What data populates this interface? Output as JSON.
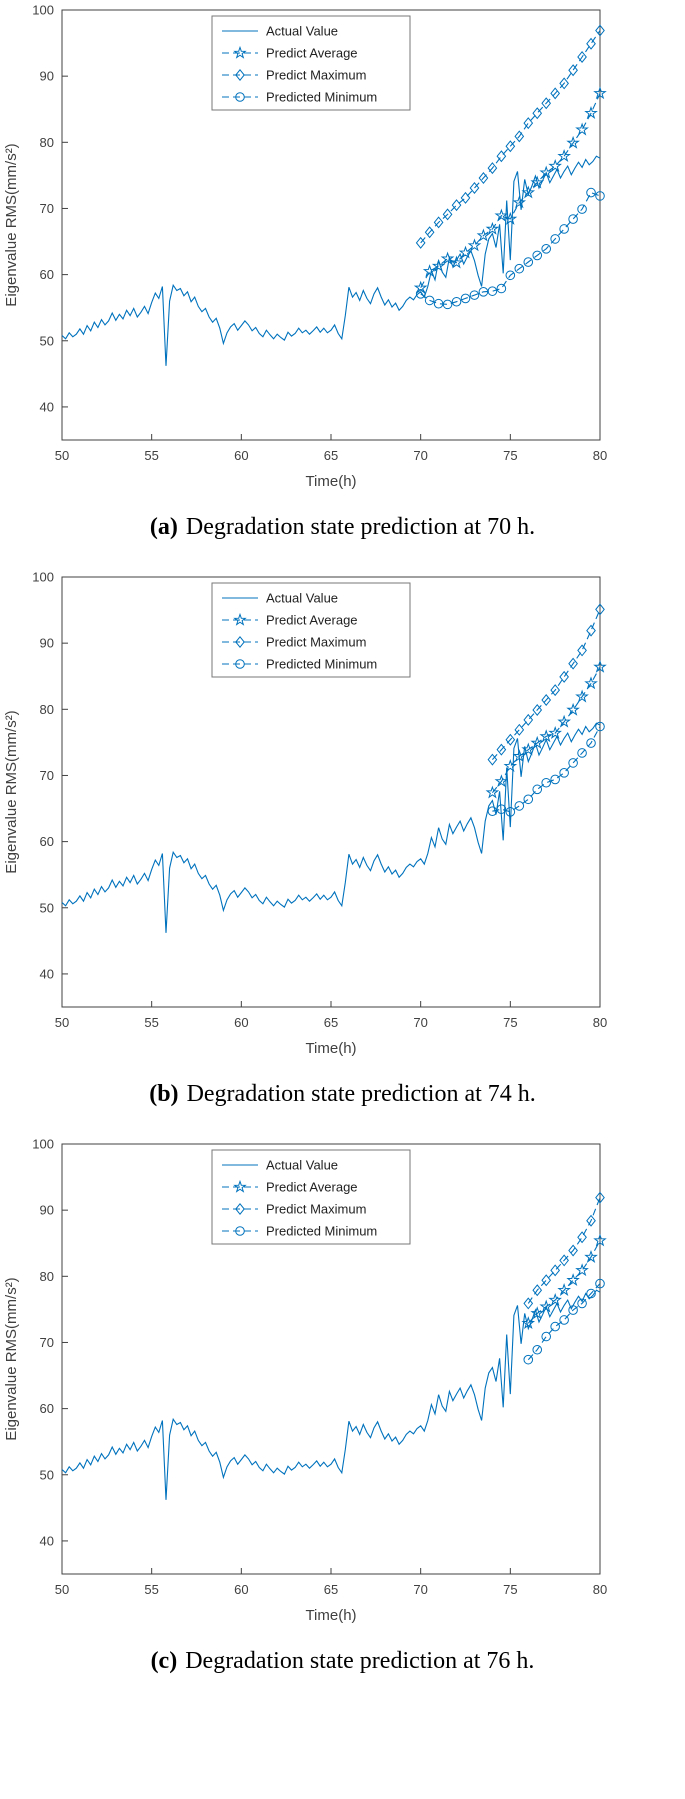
{
  "figures": [
    {
      "id": "a",
      "caption": {
        "label": "(a)",
        "text": "Degradation state prediction at 70 h."
      }
    },
    {
      "id": "b",
      "caption": {
        "label": "(b)",
        "text": "Degradation state prediction at 74 h."
      }
    },
    {
      "id": "c",
      "caption": {
        "label": "(c)",
        "text": "Degradation state prediction at 76 h."
      }
    }
  ],
  "colors": {
    "series": "#0072BD",
    "axis": "#404040",
    "legend_border": "#777777",
    "background": "#ffffff"
  },
  "legend_labels": [
    "Actual Value",
    "Predict Average",
    "Predict Maximum",
    "Predicted Minimum"
  ],
  "chart_data": {
    "shared_actual": {
      "x_start": 50,
      "x_step": 0.2,
      "y": [
        50.8,
        50.3,
        51.2,
        50.6,
        51.0,
        51.8,
        51.0,
        52.3,
        51.5,
        52.8,
        52.0,
        53.2,
        52.4,
        53.0,
        54.2,
        53.1,
        54.0,
        53.3,
        54.6,
        53.8,
        54.9,
        53.6,
        54.3,
        55.2,
        54.1,
        55.8,
        57.2,
        56.4,
        58.2,
        46.2,
        56.0,
        58.4,
        57.6,
        57.9,
        56.8,
        57.4,
        55.9,
        56.6,
        55.2,
        54.4,
        54.9,
        53.6,
        52.8,
        53.4,
        51.9,
        49.6,
        51.2,
        52.1,
        52.6,
        51.6,
        52.3,
        53.0,
        52.4,
        51.5,
        52.0,
        51.1,
        50.6,
        51.6,
        50.9,
        50.3,
        51.0,
        50.5,
        50.1,
        51.3,
        50.7,
        51.1,
        51.9,
        51.2,
        51.6,
        51.0,
        51.5,
        52.1,
        51.3,
        51.9,
        51.2,
        51.6,
        52.4,
        51.1,
        50.3,
        53.8,
        58.1,
        56.6,
        57.3,
        56.1,
        57.6,
        56.4,
        55.6,
        57.1,
        58.0,
        56.6,
        55.4,
        56.2,
        55.1,
        55.7,
        54.6,
        55.2,
        56.1,
        56.6,
        56.2,
        57.0,
        57.4,
        56.6,
        58.2,
        60.6,
        59.2,
        62.1,
        60.4,
        59.6,
        62.6,
        61.2,
        62.2,
        63.1,
        61.6,
        62.7,
        63.6,
        62.1,
        59.9,
        58.2,
        63.1,
        65.4,
        66.2,
        64.1,
        67.6,
        60.2,
        71.2,
        62.2,
        74.1,
        75.6,
        69.8,
        74.4,
        72.1,
        73.4,
        74.9,
        73.1,
        74.2,
        75.4,
        73.9,
        74.9,
        75.9,
        74.6,
        75.6,
        76.4,
        75.1,
        76.1,
        77.0,
        76.2,
        77.4,
        76.6,
        77.1,
        77.9,
        77.6
      ]
    },
    "charts": [
      {
        "id": "a",
        "type": "line",
        "title": "",
        "xlabel": "Time(h)",
        "ylabel": "Eigenvalue RMS(mm/s²)",
        "xlim": [
          50,
          80
        ],
        "ylim": [
          35,
          100
        ],
        "xticks": [
          50,
          55,
          60,
          65,
          70,
          75,
          80
        ],
        "yticks": [
          40,
          50,
          60,
          70,
          80,
          90,
          100
        ],
        "grid": false,
        "legend_position": "top-center",
        "prediction_start_h": 70,
        "series": [
          {
            "name": "Actual Value",
            "style": "solid",
            "marker": "none",
            "use": "shared_actual"
          },
          {
            "name": "Predict Average",
            "style": "dashed",
            "marker": "star",
            "x_start": 70,
            "x_step": 0.5,
            "y": [
              58.0,
              60.5,
              61.3,
              62.4,
              61.8,
              63.3,
              64.4,
              65.9,
              66.9,
              68.9,
              68.4,
              70.9,
              72.4,
              73.9,
              75.4,
              76.4,
              77.9,
              79.9,
              81.9,
              84.4,
              87.4
            ]
          },
          {
            "name": "Predict Maximum",
            "style": "dashed",
            "marker": "diamond",
            "x_start": 70,
            "x_step": 0.5,
            "y": [
              64.8,
              66.4,
              67.9,
              69.1,
              70.5,
              71.6,
              73.1,
              74.6,
              76.1,
              77.9,
              79.4,
              80.9,
              82.9,
              84.4,
              85.9,
              87.4,
              88.9,
              90.9,
              92.9,
              94.9,
              96.9
            ]
          },
          {
            "name": "Predicted Minimum",
            "style": "dashed",
            "marker": "circle",
            "x_start": 70,
            "x_step": 0.5,
            "y": [
              57.1,
              56.1,
              55.6,
              55.5,
              55.9,
              56.4,
              56.9,
              57.4,
              57.5,
              57.9,
              59.9,
              60.9,
              61.9,
              62.9,
              63.9,
              65.4,
              66.9,
              68.4,
              69.9,
              72.4,
              71.9
            ]
          }
        ]
      },
      {
        "id": "b",
        "type": "line",
        "title": "",
        "xlabel": "Time(h)",
        "ylabel": "Eigenvalue RMS(mm/s²)",
        "xlim": [
          50,
          80
        ],
        "ylim": [
          35,
          100
        ],
        "xticks": [
          50,
          55,
          60,
          65,
          70,
          75,
          80
        ],
        "yticks": [
          40,
          50,
          60,
          70,
          80,
          90,
          100
        ],
        "grid": false,
        "legend_position": "top-center",
        "prediction_start_h": 74,
        "series": [
          {
            "name": "Actual Value",
            "style": "solid",
            "marker": "none",
            "use": "shared_actual"
          },
          {
            "name": "Predict Average",
            "style": "dashed",
            "marker": "star",
            "x_start": 74,
            "x_step": 0.5,
            "y": [
              67.4,
              69.1,
              71.4,
              72.9,
              73.9,
              74.9,
              75.9,
              76.4,
              78.1,
              79.9,
              81.9,
              83.9,
              86.4
            ]
          },
          {
            "name": "Predict Maximum",
            "style": "dashed",
            "marker": "diamond",
            "x_start": 74,
            "x_step": 0.5,
            "y": [
              72.4,
              73.9,
              75.4,
              76.9,
              78.4,
              79.9,
              81.4,
              82.9,
              84.9,
              86.9,
              88.9,
              91.9,
              95.1
            ]
          },
          {
            "name": "Predicted Minimum",
            "style": "dashed",
            "marker": "circle",
            "x_start": 74,
            "x_step": 0.5,
            "y": [
              64.6,
              64.9,
              64.5,
              65.4,
              66.4,
              67.9,
              68.9,
              69.4,
              70.4,
              71.9,
              73.4,
              74.9,
              77.4
            ]
          }
        ]
      },
      {
        "id": "c",
        "type": "line",
        "title": "",
        "xlabel": "Time(h)",
        "ylabel": "Eigenvalue RMS(mm/s²)",
        "xlim": [
          50,
          80
        ],
        "ylim": [
          35,
          100
        ],
        "xticks": [
          50,
          55,
          60,
          65,
          70,
          75,
          80
        ],
        "yticks": [
          40,
          50,
          60,
          70,
          80,
          90,
          100
        ],
        "grid": false,
        "legend_position": "top-center",
        "prediction_start_h": 76,
        "series": [
          {
            "name": "Actual Value",
            "style": "solid",
            "marker": "none",
            "use": "shared_actual"
          },
          {
            "name": "Predict Average",
            "style": "dashed",
            "marker": "star",
            "x_start": 76,
            "x_step": 0.5,
            "y": [
              72.9,
              74.4,
              75.4,
              76.4,
              77.9,
              79.4,
              80.9,
              82.9,
              85.4
            ]
          },
          {
            "name": "Predict Maximum",
            "style": "dashed",
            "marker": "diamond",
            "x_start": 76,
            "x_step": 0.5,
            "y": [
              75.9,
              77.9,
              79.4,
              80.9,
              82.4,
              83.9,
              85.9,
              88.4,
              91.9
            ]
          },
          {
            "name": "Predicted Minimum",
            "style": "dashed",
            "marker": "circle",
            "x_start": 76,
            "x_step": 0.5,
            "y": [
              67.4,
              68.9,
              70.9,
              72.4,
              73.4,
              74.9,
              75.9,
              77.4,
              78.9
            ]
          }
        ]
      }
    ]
  }
}
